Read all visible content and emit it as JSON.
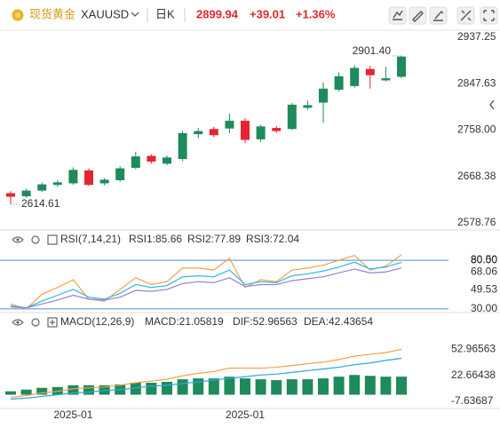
{
  "header": {
    "name": "现货黄金",
    "symbol": "XAUUSD",
    "period": "日K",
    "price": 2899.94,
    "change": "+39.01",
    "change_pct": "+1.36%"
  },
  "chart_data": [
    {
      "type": "candlestick",
      "categories": [
        null,
        null,
        null,
        null,
        "2025-01",
        null,
        null,
        null,
        null,
        null,
        null,
        null,
        null,
        null,
        null,
        "2025-01",
        null,
        null,
        null,
        null,
        null,
        null,
        null,
        null,
        null,
        null
      ],
      "open": [
        2636,
        2630,
        2641,
        2652,
        2655,
        2680,
        2655,
        2661,
        2685,
        2708,
        2693,
        2702,
        2750,
        2760,
        2761,
        2776,
        2740,
        2762,
        2760,
        2801,
        2811,
        2836,
        2843,
        2876,
        2854,
        2860.93
      ],
      "high": [
        2640,
        2645,
        2657,
        2661,
        2686,
        2684,
        2665,
        2688,
        2716,
        2711,
        2709,
        2756,
        2762,
        2764,
        2790,
        2781,
        2768,
        2766,
        2810,
        2815,
        2850,
        2869,
        2883,
        2882,
        2880,
        2901.4
      ],
      "low": [
        2614.61,
        2627,
        2638,
        2648,
        2652,
        2650,
        2651,
        2658,
        2682,
        2693,
        2690,
        2698,
        2742,
        2744,
        2752,
        2733,
        2735,
        2752,
        2758,
        2797,
        2772,
        2832,
        2840,
        2838,
        2852,
        2858
      ],
      "close": [
        2629,
        2641,
        2653,
        2657,
        2681,
        2652,
        2662,
        2684,
        2707,
        2697,
        2705,
        2752,
        2756,
        2748,
        2776,
        2739,
        2765,
        2756,
        2807,
        2806,
        2838,
        2862,
        2878,
        2864,
        2858,
        2899.94
      ],
      "up_color": "#1f8a5b",
      "down_color": "#e3262f",
      "ylim": [
        2570,
        2947.5
      ],
      "yticks": [
        2937.25,
        2847.63,
        {
          "value": 2758.0,
          "label": "2758.00"
        },
        2668.38,
        2578.76
      ],
      "annotations": [
        {
          "value": 2901.4,
          "label": "2901.40"
        },
        2614.61
      ]
    },
    {
      "type": "line",
      "title": "RSI(7,14,21)",
      "series": [
        {
          "name": "RSI1:85.66",
          "color": "#f5a04a",
          "values": [
            35,
            30,
            45,
            52,
            60,
            40,
            38,
            50,
            62,
            55,
            58,
            72,
            72,
            70,
            82,
            52,
            60,
            58,
            70,
            72,
            75,
            80,
            85,
            70,
            74,
            85.66
          ]
        },
        {
          "name": "RSI2:77.89",
          "color": "#2bbbe0",
          "values": [
            33,
            31,
            38,
            44,
            50,
            42,
            40,
            46,
            55,
            52,
            54,
            63,
            64,
            63,
            70,
            55,
            58,
            57,
            64,
            66,
            69,
            73,
            78,
            71,
            73,
            77.89
          ]
        },
        {
          "name": "RSI3:72.04",
          "color": "#9a7fd6",
          "values": [
            32,
            31,
            35,
            39,
            44,
            40,
            39,
            42,
            49,
            48,
            50,
            56,
            58,
            57,
            62,
            53,
            55,
            55,
            59,
            61,
            63,
            67,
            71,
            67,
            68,
            72.04
          ]
        }
      ],
      "ylim": [
        28,
        92
      ],
      "yticks": [
        {
          "value": 80.5,
          "label": "80.50"
        },
        {
          "value": 80,
          "label": "80.00",
          "line": true
        },
        68.06,
        49.53,
        {
          "value": 30,
          "label": "30.00",
          "line": true
        }
      ],
      "line_color": "#4a8fe0"
    },
    {
      "type": "macd",
      "title": "MACD(12,26,9)",
      "series": [
        {
          "name": "MACD:21.05819",
          "color": "#a36fd6",
          "bar_color": "#1f8a5b",
          "values": [
            4,
            6,
            8,
            9,
            11,
            11,
            11,
            12,
            14,
            14,
            15,
            18,
            19,
            19,
            21,
            19,
            18,
            17,
            18,
            18,
            19,
            21,
            23,
            22,
            21,
            21.05819
          ]
        },
        {
          "name": "DIF:52.96563",
          "color": "#f5a04a",
          "values": [
            -3,
            -1,
            2,
            4,
            7,
            8,
            9,
            11,
            14,
            16,
            18,
            22,
            25,
            27,
            31,
            31,
            31,
            32,
            34,
            36,
            38,
            41,
            45,
            47,
            49,
            52.96563
          ]
        },
        {
          "name": "DEA:42.43654",
          "color": "#2aa7de",
          "values": [
            -5,
            -4,
            -2,
            0,
            2,
            3,
            5,
            6,
            8,
            10,
            11,
            13,
            15,
            17,
            19,
            21,
            23,
            24,
            26,
            28,
            30,
            32,
            35,
            37,
            40,
            42.43654
          ]
        }
      ],
      "ylim": [
        -16,
        75
      ],
      "yticks": [
        52.96563,
        22.66438,
        -7.63687
      ]
    }
  ]
}
